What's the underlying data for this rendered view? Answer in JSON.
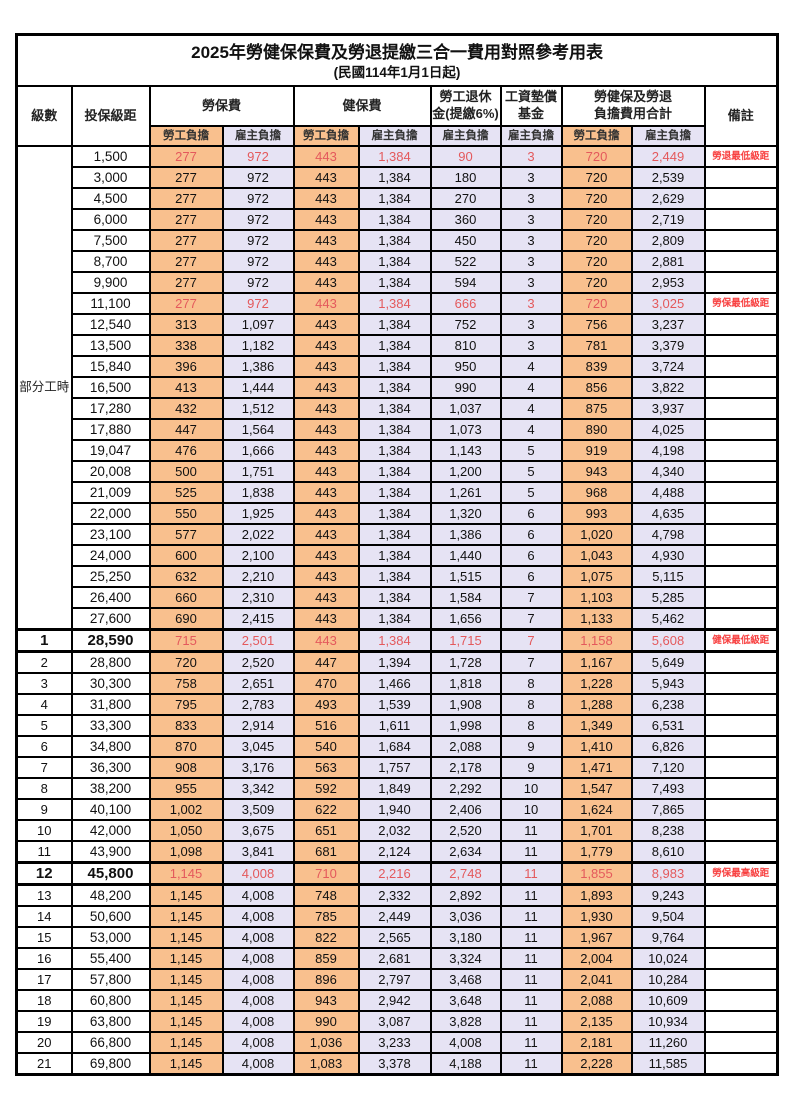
{
  "doc": {
    "title": "2025年勞健保保費及勞退提繳三合一費用對照參考用表",
    "subtitle": "(民國114年1月1日起)"
  },
  "table": {
    "headers": {
      "level": "級數",
      "bracket": "投保級距",
      "labor": "勞保費",
      "health": "健保費",
      "pension": [
        "勞工退休",
        "金(提繳6%)"
      ],
      "wage": [
        "工資墊償",
        "基金"
      ],
      "total": [
        "勞健保及勞退",
        "負擔費用合計"
      ],
      "note": "備註"
    },
    "subheaders": {
      "employee": "勞工負擔",
      "employer": "雇主負擔"
    },
    "part_time_label": "部分工時",
    "colors": {
      "employee_bg": "#f9c08e",
      "employer_bg": "#e6e3f4",
      "threshold_text": "#e4595c",
      "note_text": "#f84040"
    },
    "rows": [
      {
        "group": "部分工時",
        "groupSpan": 23,
        "bracket": "1,500",
        "values": [
          "277",
          "972",
          "443",
          "1,384",
          "90",
          "3",
          "720",
          "2,449"
        ],
        "note": "勞退最低級距",
        "red": true
      },
      {
        "bracket": "3,000",
        "values": [
          "277",
          "972",
          "443",
          "1,384",
          "180",
          "3",
          "720",
          "2,539"
        ]
      },
      {
        "bracket": "4,500",
        "values": [
          "277",
          "972",
          "443",
          "1,384",
          "270",
          "3",
          "720",
          "2,629"
        ]
      },
      {
        "bracket": "6,000",
        "values": [
          "277",
          "972",
          "443",
          "1,384",
          "360",
          "3",
          "720",
          "2,719"
        ]
      },
      {
        "bracket": "7,500",
        "values": [
          "277",
          "972",
          "443",
          "1,384",
          "450",
          "3",
          "720",
          "2,809"
        ]
      },
      {
        "bracket": "8,700",
        "values": [
          "277",
          "972",
          "443",
          "1,384",
          "522",
          "3",
          "720",
          "2,881"
        ]
      },
      {
        "bracket": "9,900",
        "values": [
          "277",
          "972",
          "443",
          "1,384",
          "594",
          "3",
          "720",
          "2,953"
        ]
      },
      {
        "bracket": "11,100",
        "values": [
          "277",
          "972",
          "443",
          "1,384",
          "666",
          "3",
          "720",
          "3,025"
        ],
        "note": "勞保最低級距",
        "red": true
      },
      {
        "bracket": "12,540",
        "values": [
          "313",
          "1,097",
          "443",
          "1,384",
          "752",
          "3",
          "756",
          "3,237"
        ]
      },
      {
        "bracket": "13,500",
        "values": [
          "338",
          "1,182",
          "443",
          "1,384",
          "810",
          "3",
          "781",
          "3,379"
        ]
      },
      {
        "bracket": "15,840",
        "values": [
          "396",
          "1,386",
          "443",
          "1,384",
          "950",
          "4",
          "839",
          "3,724"
        ]
      },
      {
        "bracket": "16,500",
        "values": [
          "413",
          "1,444",
          "443",
          "1,384",
          "990",
          "4",
          "856",
          "3,822"
        ]
      },
      {
        "bracket": "17,280",
        "values": [
          "432",
          "1,512",
          "443",
          "1,384",
          "1,037",
          "4",
          "875",
          "3,937"
        ]
      },
      {
        "bracket": "17,880",
        "values": [
          "447",
          "1,564",
          "443",
          "1,384",
          "1,073",
          "4",
          "890",
          "4,025"
        ]
      },
      {
        "bracket": "19,047",
        "values": [
          "476",
          "1,666",
          "443",
          "1,384",
          "1,143",
          "5",
          "919",
          "4,198"
        ]
      },
      {
        "bracket": "20,008",
        "values": [
          "500",
          "1,751",
          "443",
          "1,384",
          "1,200",
          "5",
          "943",
          "4,340"
        ]
      },
      {
        "bracket": "21,009",
        "values": [
          "525",
          "1,838",
          "443",
          "1,384",
          "1,261",
          "5",
          "968",
          "4,488"
        ]
      },
      {
        "bracket": "22,000",
        "values": [
          "550",
          "1,925",
          "443",
          "1,384",
          "1,320",
          "6",
          "993",
          "4,635"
        ]
      },
      {
        "bracket": "23,100",
        "values": [
          "577",
          "2,022",
          "443",
          "1,384",
          "1,386",
          "6",
          "1,020",
          "4,798"
        ]
      },
      {
        "bracket": "24,000",
        "values": [
          "600",
          "2,100",
          "443",
          "1,384",
          "1,440",
          "6",
          "1,043",
          "4,930"
        ]
      },
      {
        "bracket": "25,250",
        "values": [
          "632",
          "2,210",
          "443",
          "1,384",
          "1,515",
          "6",
          "1,075",
          "5,115"
        ]
      },
      {
        "bracket": "26,400",
        "values": [
          "660",
          "2,310",
          "443",
          "1,384",
          "1,584",
          "7",
          "1,103",
          "5,285"
        ]
      },
      {
        "bracket": "27,600",
        "values": [
          "690",
          "2,415",
          "443",
          "1,384",
          "1,656",
          "7",
          "1,133",
          "5,462"
        ]
      },
      {
        "level": "1",
        "bracket": "28,590",
        "values": [
          "715",
          "2,501",
          "443",
          "1,384",
          "1,715",
          "7",
          "1,158",
          "5,608"
        ],
        "note": "健保最低級距",
        "red": true,
        "thick": true
      },
      {
        "level": "2",
        "bracket": "28,800",
        "values": [
          "720",
          "2,520",
          "447",
          "1,394",
          "1,728",
          "7",
          "1,167",
          "5,649"
        ]
      },
      {
        "level": "3",
        "bracket": "30,300",
        "values": [
          "758",
          "2,651",
          "470",
          "1,466",
          "1,818",
          "8",
          "1,228",
          "5,943"
        ]
      },
      {
        "level": "4",
        "bracket": "31,800",
        "values": [
          "795",
          "2,783",
          "493",
          "1,539",
          "1,908",
          "8",
          "1,288",
          "6,238"
        ]
      },
      {
        "level": "5",
        "bracket": "33,300",
        "values": [
          "833",
          "2,914",
          "516",
          "1,611",
          "1,998",
          "8",
          "1,349",
          "6,531"
        ]
      },
      {
        "level": "6",
        "bracket": "34,800",
        "values": [
          "870",
          "3,045",
          "540",
          "1,684",
          "2,088",
          "9",
          "1,410",
          "6,826"
        ]
      },
      {
        "level": "7",
        "bracket": "36,300",
        "values": [
          "908",
          "3,176",
          "563",
          "1,757",
          "2,178",
          "9",
          "1,471",
          "7,120"
        ]
      },
      {
        "level": "8",
        "bracket": "38,200",
        "values": [
          "955",
          "3,342",
          "592",
          "1,849",
          "2,292",
          "10",
          "1,547",
          "7,493"
        ]
      },
      {
        "level": "9",
        "bracket": "40,100",
        "values": [
          "1,002",
          "3,509",
          "622",
          "1,940",
          "2,406",
          "10",
          "1,624",
          "7,865"
        ]
      },
      {
        "level": "10",
        "bracket": "42,000",
        "values": [
          "1,050",
          "3,675",
          "651",
          "2,032",
          "2,520",
          "11",
          "1,701",
          "8,238"
        ]
      },
      {
        "level": "11",
        "bracket": "43,900",
        "values": [
          "1,098",
          "3,841",
          "681",
          "2,124",
          "2,634",
          "11",
          "1,779",
          "8,610"
        ]
      },
      {
        "level": "12",
        "bracket": "45,800",
        "values": [
          "1,145",
          "4,008",
          "710",
          "2,216",
          "2,748",
          "11",
          "1,855",
          "8,983"
        ],
        "note": "勞保最高級距",
        "red": true,
        "thick": true
      },
      {
        "level": "13",
        "bracket": "48,200",
        "values": [
          "1,145",
          "4,008",
          "748",
          "2,332",
          "2,892",
          "11",
          "1,893",
          "9,243"
        ]
      },
      {
        "level": "14",
        "bracket": "50,600",
        "values": [
          "1,145",
          "4,008",
          "785",
          "2,449",
          "3,036",
          "11",
          "1,930",
          "9,504"
        ]
      },
      {
        "level": "15",
        "bracket": "53,000",
        "values": [
          "1,145",
          "4,008",
          "822",
          "2,565",
          "3,180",
          "11",
          "1,967",
          "9,764"
        ]
      },
      {
        "level": "16",
        "bracket": "55,400",
        "values": [
          "1,145",
          "4,008",
          "859",
          "2,681",
          "3,324",
          "11",
          "2,004",
          "10,024"
        ]
      },
      {
        "level": "17",
        "bracket": "57,800",
        "values": [
          "1,145",
          "4,008",
          "896",
          "2,797",
          "3,468",
          "11",
          "2,041",
          "10,284"
        ]
      },
      {
        "level": "18",
        "bracket": "60,800",
        "values": [
          "1,145",
          "4,008",
          "943",
          "2,942",
          "3,648",
          "11",
          "2,088",
          "10,609"
        ]
      },
      {
        "level": "19",
        "bracket": "63,800",
        "values": [
          "1,145",
          "4,008",
          "990",
          "3,087",
          "3,828",
          "11",
          "2,135",
          "10,934"
        ]
      },
      {
        "level": "20",
        "bracket": "66,800",
        "values": [
          "1,145",
          "4,008",
          "1,036",
          "3,233",
          "4,008",
          "11",
          "2,181",
          "11,260"
        ]
      },
      {
        "level": "21",
        "bracket": "69,800",
        "values": [
          "1,145",
          "4,008",
          "1,083",
          "3,378",
          "4,188",
          "11",
          "2,228",
          "11,585"
        ]
      }
    ]
  }
}
